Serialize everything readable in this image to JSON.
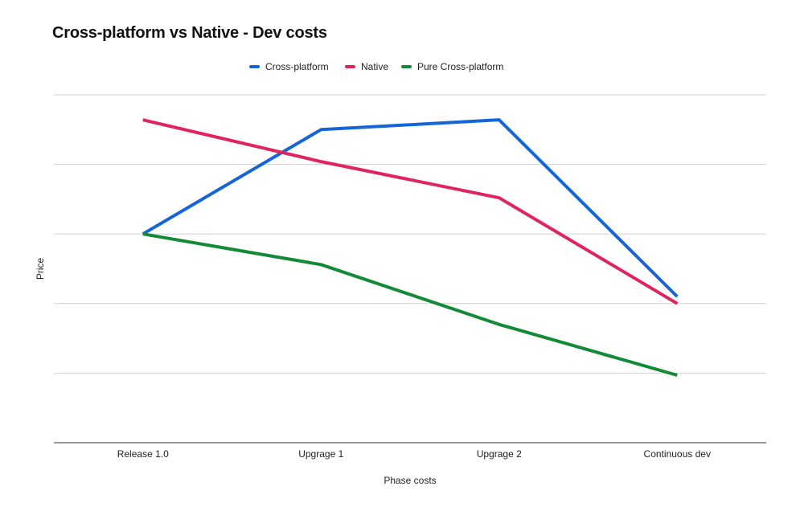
{
  "chart_data": {
    "type": "line",
    "title": "Cross-platform vs Native - Dev costs",
    "xlabel": "Phase costs",
    "ylabel": "Price",
    "categories": [
      "Release 1.0",
      "Upgrage 1",
      "Upgrage 2",
      "Continuous dev"
    ],
    "ylim": [
      0,
      5
    ],
    "grid": true,
    "legend_position": "top",
    "series": [
      {
        "name": "Cross-platform",
        "color": "#1565d8",
        "values": [
          3.0,
          4.5,
          4.64,
          2.1
        ]
      },
      {
        "name": "Native",
        "color": "#e0245e",
        "values": [
          4.64,
          4.04,
          3.52,
          2.0
        ]
      },
      {
        "name": "Pure Cross-platform",
        "color": "#138a36",
        "values": [
          3.0,
          2.56,
          1.7,
          0.97
        ]
      }
    ]
  }
}
